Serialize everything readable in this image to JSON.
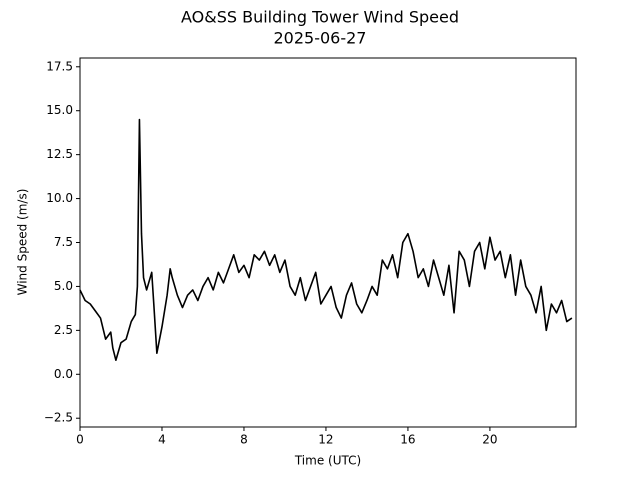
{
  "chart_data": {
    "type": "line",
    "title": "AO&SS Building Tower Wind Speed",
    "subtitle": "2025-06-27",
    "xlabel": "Time (UTC)",
    "ylabel": "Wind Speed (m/s)",
    "color": "#000000",
    "xlim": [
      0,
      24.2
    ],
    "ylim": [
      -3,
      18
    ],
    "xticks": [
      0,
      4,
      8,
      12,
      16,
      20
    ],
    "yticks": [
      {
        "value": -2.5,
        "label": "−2.5"
      },
      {
        "value": 0,
        "label": "0.0"
      },
      2.5,
      {
        "value": 5,
        "label": "5.0"
      },
      7.5,
      {
        "value": 10,
        "label": "10.0"
      },
      12.5,
      {
        "value": 15,
        "label": "15.0"
      },
      17.5
    ],
    "x": [
      0,
      0.25,
      0.5,
      0.75,
      1.0,
      1.25,
      1.5,
      1.6,
      1.75,
      2.0,
      2.25,
      2.5,
      2.7,
      2.8,
      2.9,
      3.0,
      3.1,
      3.25,
      3.5,
      3.6,
      3.75,
      4.0,
      4.25,
      4.4,
      4.5,
      4.75,
      5.0,
      5.25,
      5.5,
      5.75,
      6.0,
      6.25,
      6.5,
      6.75,
      7.0,
      7.25,
      7.5,
      7.75,
      8.0,
      8.25,
      8.5,
      8.75,
      9.0,
      9.25,
      9.5,
      9.75,
      10.0,
      10.25,
      10.5,
      10.75,
      11.0,
      11.25,
      11.5,
      11.75,
      12.0,
      12.25,
      12.5,
      12.75,
      13.0,
      13.25,
      13.5,
      13.75,
      14.0,
      14.25,
      14.5,
      14.75,
      15.0,
      15.25,
      15.5,
      15.75,
      16.0,
      16.25,
      16.5,
      16.75,
      17.0,
      17.25,
      17.5,
      17.75,
      18.0,
      18.25,
      18.5,
      18.75,
      19.0,
      19.25,
      19.5,
      19.75,
      20.0,
      20.25,
      20.5,
      20.75,
      21.0,
      21.25,
      21.5,
      21.75,
      22.0,
      22.25,
      22.5,
      22.75,
      23.0,
      23.25,
      23.5,
      23.75,
      24.0
    ],
    "values": [
      4.8,
      4.2,
      4.0,
      3.6,
      3.2,
      2.0,
      2.4,
      1.5,
      0.8,
      1.8,
      2.0,
      3.0,
      3.4,
      5.0,
      14.5,
      8.0,
      5.5,
      4.8,
      5.8,
      4.0,
      1.2,
      2.7,
      4.5,
      6.0,
      5.5,
      4.5,
      3.8,
      4.5,
      4.8,
      4.2,
      5.0,
      5.5,
      4.8,
      5.8,
      5.2,
      6.0,
      6.8,
      5.8,
      6.2,
      5.5,
      6.8,
      6.5,
      7.0,
      6.2,
      6.8,
      5.8,
      6.5,
      5.0,
      4.5,
      5.5,
      4.2,
      5.0,
      5.8,
      4.0,
      4.5,
      5.0,
      3.8,
      3.2,
      4.5,
      5.2,
      4.0,
      3.5,
      4.2,
      5.0,
      4.5,
      6.5,
      6.0,
      6.8,
      5.5,
      7.5,
      8.0,
      7.0,
      5.5,
      6.0,
      5.0,
      6.5,
      5.5,
      4.5,
      6.2,
      3.5,
      7.0,
      6.5,
      5.0,
      7.0,
      7.5,
      6.0,
      7.8,
      6.5,
      7.0,
      5.5,
      6.8,
      4.5,
      6.5,
      5.0,
      4.5,
      3.5,
      5.0,
      2.5,
      4.0,
      3.5,
      4.2,
      3.0,
      3.2
    ]
  }
}
